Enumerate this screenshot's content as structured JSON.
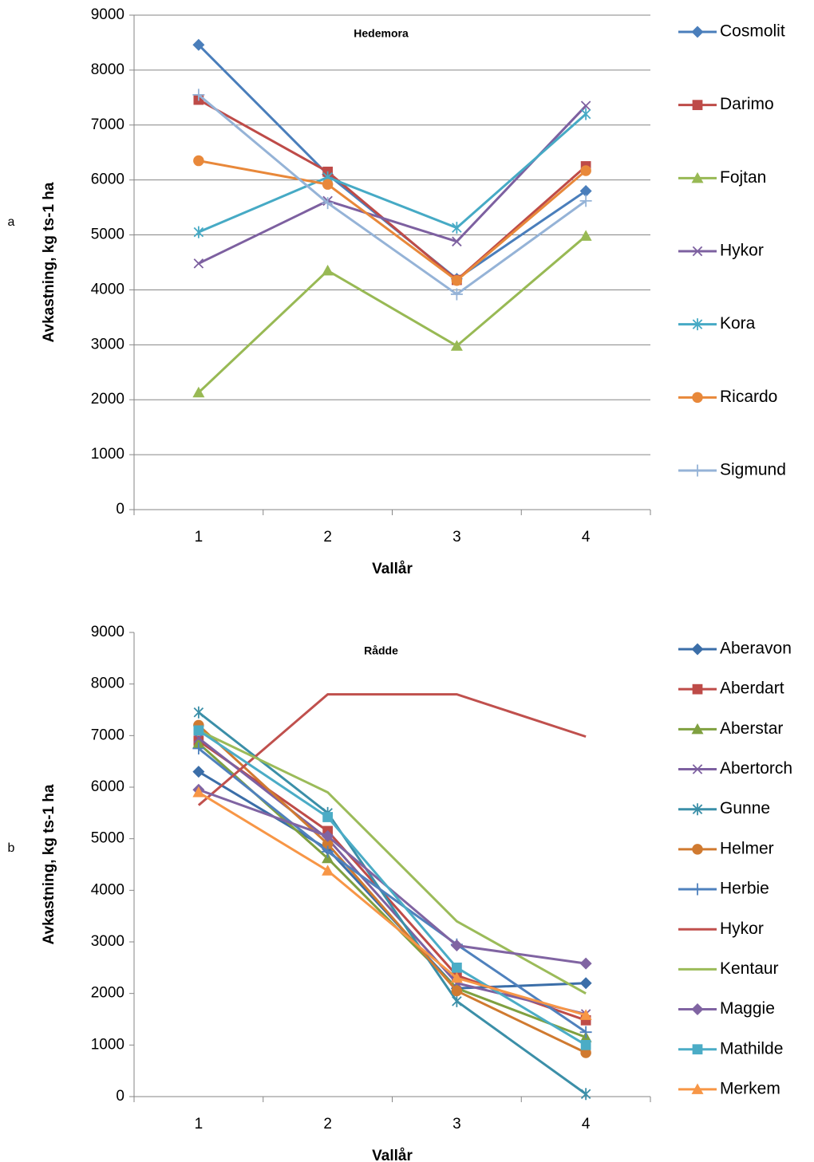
{
  "chart_data": [
    {
      "type": "line",
      "panel_label": "a",
      "title": "Hedemora",
      "x_label": "Vallår",
      "y_label": "Avkastning, kg ts-1 ha",
      "categories": [
        "1",
        "2",
        "3",
        "4"
      ],
      "ylim": [
        0,
        9000
      ],
      "yticks": [
        0,
        1000,
        2000,
        3000,
        4000,
        5000,
        6000,
        7000,
        8000,
        9000
      ],
      "grid": true,
      "legend": "right",
      "series": [
        {
          "name": "Cosmolit",
          "color": "#4a7ebb",
          "marker": "diamond",
          "values": [
            8460,
            6100,
            4200,
            5800
          ]
        },
        {
          "name": "Darimo",
          "color": "#be4b48",
          "marker": "square",
          "values": [
            7460,
            6150,
            4180,
            6250
          ]
        },
        {
          "name": "Fojtan",
          "color": "#98b954",
          "marker": "triangle",
          "values": [
            2130,
            4350,
            2980,
            4980
          ]
        },
        {
          "name": "Hykor",
          "color": "#7d60a0",
          "marker": "x",
          "values": [
            4480,
            5620,
            4880,
            7350
          ]
        },
        {
          "name": "Kora",
          "color": "#46aac5",
          "marker": "star",
          "values": [
            5050,
            6050,
            5130,
            7200
          ]
        },
        {
          "name": "Ricardo",
          "color": "#e8883a",
          "marker": "circle",
          "values": [
            6350,
            5920,
            4170,
            6170
          ]
        },
        {
          "name": "Sigmund",
          "color": "#95b3d7",
          "marker": "plus",
          "values": [
            7550,
            5580,
            3920,
            5620
          ]
        }
      ]
    },
    {
      "type": "line",
      "panel_label": "b",
      "title": "Rådde",
      "x_label": "Vallår",
      "y_label": "Avkastning, kg ts-1 ha",
      "categories": [
        "1",
        "2",
        "3",
        "4"
      ],
      "ylim": [
        0,
        9000
      ],
      "yticks": [
        0,
        1000,
        2000,
        3000,
        4000,
        5000,
        6000,
        7000,
        8000,
        9000
      ],
      "grid": false,
      "legend": "right",
      "series": [
        {
          "name": "Aberavon",
          "color": "#3b6ea8",
          "marker": "diamond",
          "values": [
            6300,
            4800,
            2100,
            2200
          ]
        },
        {
          "name": "Aberdart",
          "color": "#be4b48",
          "marker": "square",
          "values": [
            6900,
            5150,
            2350,
            1480
          ]
        },
        {
          "name": "Aberstar",
          "color": "#7fa040",
          "marker": "triangle",
          "values": [
            6850,
            4620,
            2100,
            1150
          ]
        },
        {
          "name": "Abertorch",
          "color": "#7d60a0",
          "marker": "x",
          "values": [
            6950,
            5000,
            2200,
            1600
          ]
        },
        {
          "name": "Gunne",
          "color": "#3b8fa8",
          "marker": "star",
          "values": [
            7450,
            5500,
            1850,
            50
          ]
        },
        {
          "name": "Helmer",
          "color": "#d07a30",
          "marker": "circle",
          "values": [
            7200,
            4900,
            2050,
            850
          ]
        },
        {
          "name": "Herbie",
          "color": "#4f81bd",
          "marker": "plus",
          "values": [
            6750,
            4750,
            2950,
            1250
          ]
        },
        {
          "name": "Hykor",
          "color": "#c0504d",
          "marker": "none",
          "values": [
            5650,
            7800,
            7800,
            6980
          ]
        },
        {
          "name": "Kentaur",
          "color": "#9bbb59",
          "marker": "none",
          "values": [
            7100,
            5900,
            3400,
            2000
          ]
        },
        {
          "name": "Maggie",
          "color": "#8064a2",
          "marker": "diamond",
          "values": [
            5950,
            5050,
            2930,
            2580
          ]
        },
        {
          "name": "Mathilde",
          "color": "#4bacc6",
          "marker": "square",
          "values": [
            7100,
            5420,
            2500,
            1000
          ]
        },
        {
          "name": "Merkem",
          "color": "#f79646",
          "marker": "triangle",
          "values": [
            5900,
            4380,
            2300,
            1580
          ]
        }
      ]
    }
  ]
}
